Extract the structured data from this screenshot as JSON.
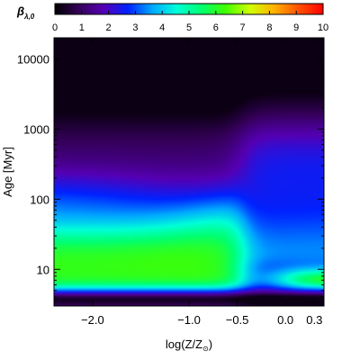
{
  "chart_data": {
    "type": "heatmap",
    "title": "",
    "colorbar": {
      "label_symbol": "β",
      "label_subscript": "λ,0",
      "range": [
        0,
        10
      ],
      "ticks": [
        "0",
        "1",
        "2",
        "3",
        "4",
        "5",
        "6",
        "7",
        "8",
        "9",
        "10"
      ],
      "colors": [
        "#000000",
        "#35005a",
        "#5500b4",
        "#0022ff",
        "#00a8ff",
        "#00ffd8",
        "#00ff70",
        "#40ff00",
        "#d0ff00",
        "#ffb000",
        "#ff5000",
        "#ff0000"
      ]
    },
    "xaxis": {
      "label_main": "log(Z/Z",
      "label_sub": "⊙",
      "label_close": ")",
      "range": [
        -2.4,
        0.4
      ],
      "ticks": [
        {
          "value": -2.0,
          "label": "−2.0"
        },
        {
          "value": -1.0,
          "label": "−1.0"
        },
        {
          "value": -0.5,
          "label": "−0.5"
        },
        {
          "value": 0.0,
          "label": "0.0"
        },
        {
          "value": 0.3,
          "label": "0.3"
        }
      ]
    },
    "yaxis": {
      "label_main": "Age",
      "label_unit": "[Myr]",
      "scale": "log",
      "range": [
        3,
        20000
      ],
      "ticks": [
        {
          "value": 10,
          "label": "10"
        },
        {
          "value": 100,
          "label": "100"
        },
        {
          "value": 1000,
          "label": "1000"
        },
        {
          "value": 10000,
          "label": "10000"
        }
      ]
    }
  }
}
